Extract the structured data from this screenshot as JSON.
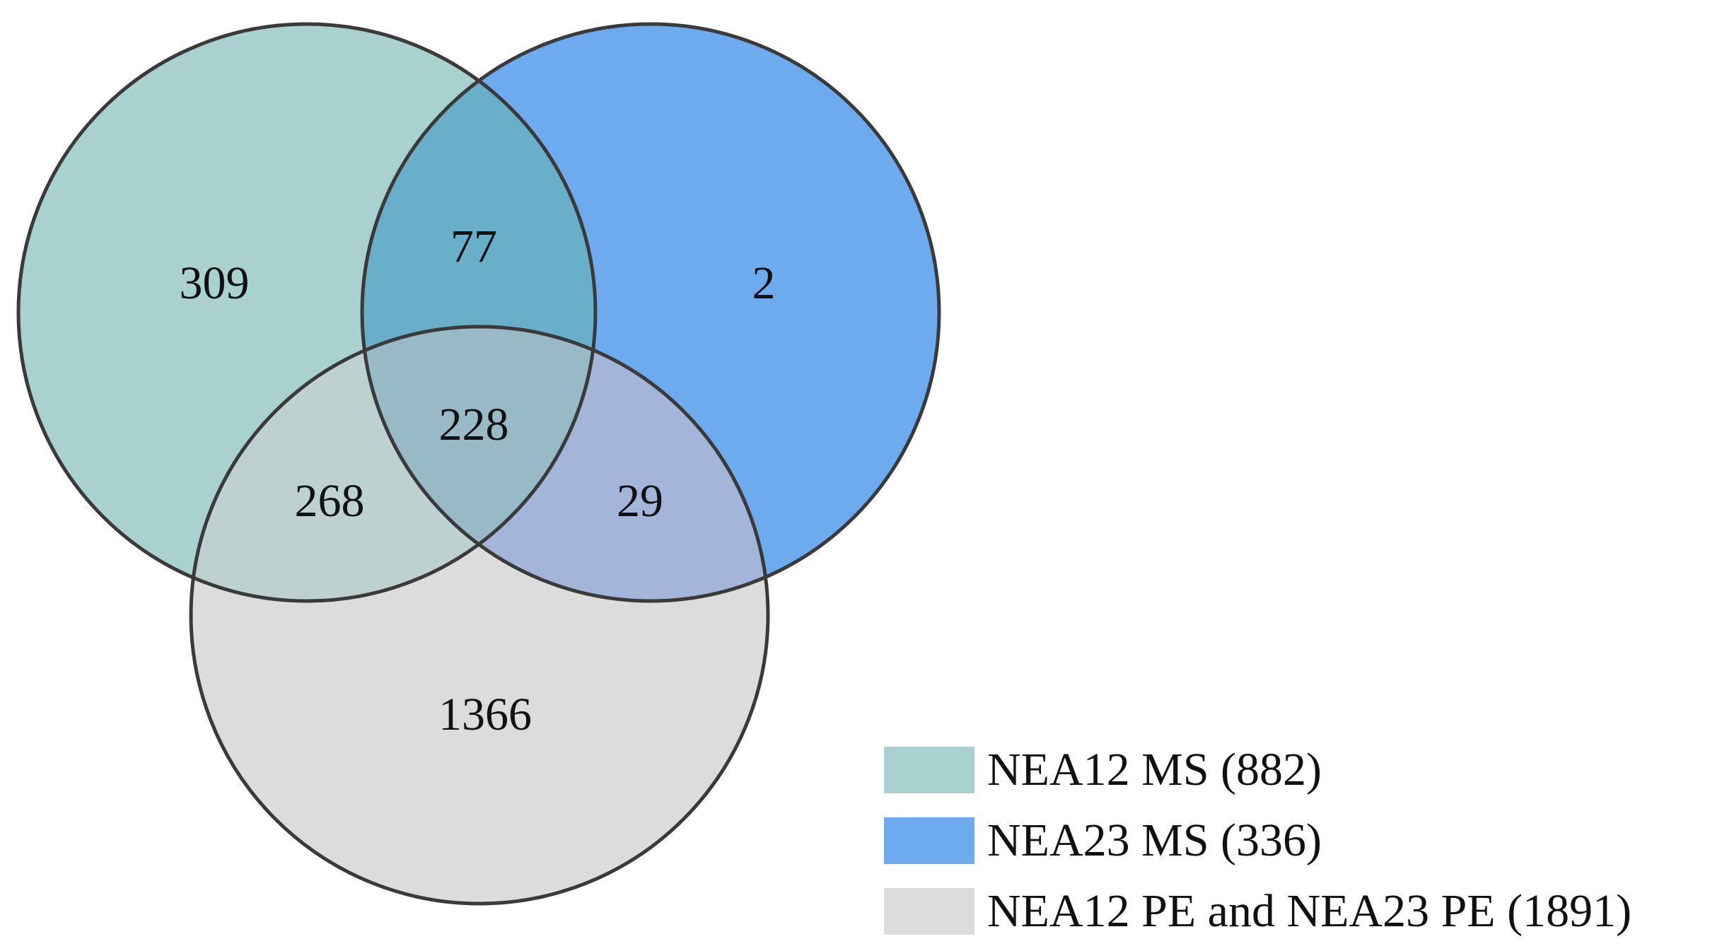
{
  "sets": [
    {
      "id": "nea12_ms",
      "legend_label": "NEA12 MS (882)",
      "color": "#a8d1cf"
    },
    {
      "id": "nea23_ms",
      "legend_label": "NEA23 MS (336)",
      "color": "#6eaaee"
    },
    {
      "id": "pe",
      "legend_label": "NEA12 PE and NEA23 PE (1891)",
      "color": "#dcdcdc"
    }
  ],
  "regions": {
    "nea12_ms_only": "309",
    "nea23_ms_only": "2",
    "pe_only": "1366",
    "nea12_ms_and_nea23_ms": "77",
    "nea12_ms_and_pe": "268",
    "nea23_ms_and_pe": "29",
    "all_three": "228"
  },
  "overlap_colors": {
    "nea12_ms_and_nea23_ms": "#6aafca",
    "nea12_ms_and_pe": "#bdd1d0",
    "nea23_ms_and_pe": "#a3b6da",
    "all_three": "#98b9c6"
  },
  "outline_color": "#3a3a3a"
}
